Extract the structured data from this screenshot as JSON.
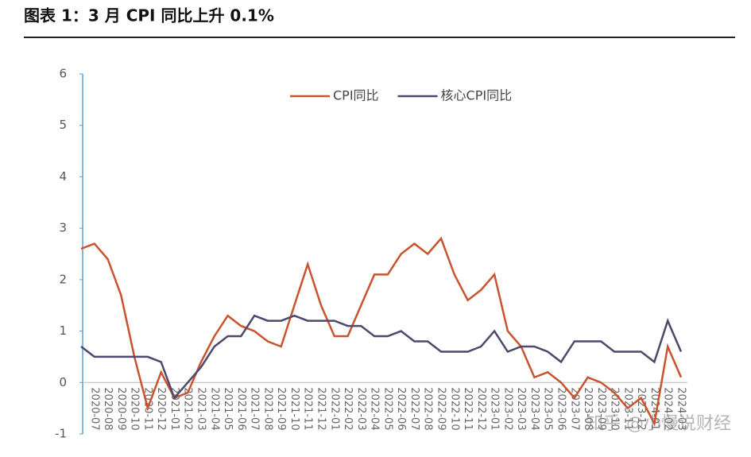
{
  "chart_data": {
    "type": "line",
    "title": "图表 1：3 月 CPI 同比上升 0.1%",
    "annotation": "知乎 @小慢说财经",
    "categories": [
      null,
      "2020-07",
      "2020-08",
      "2020-09",
      "2020-10",
      "2020-11",
      "2020-12",
      "2021-01",
      "2021-02",
      "2021-03",
      "2021-04",
      "2021-05",
      "2021-06",
      "2021-07",
      "2021-08",
      "2021-09",
      "2021-10",
      "2021-11",
      "2021-12",
      "2022-01",
      "2022-02",
      "2022-03",
      "2022-04",
      "2022-05",
      "2022-06",
      "2022-07",
      "2022-08",
      "2022-09",
      "2022-10",
      "2022-11",
      "2022-12",
      "2023-01",
      "2023-02",
      "2023-03",
      "2023-04",
      "2023-05",
      "2023-06",
      "2023-07",
      "2023-08",
      "2023-09",
      "2023-10",
      "2023-11",
      "2023-12",
      "2024-01",
      "2024-02",
      "2024-03"
    ],
    "series": [
      {
        "name": "CPI同比",
        "color": "#c9532f",
        "values": [
          2.6,
          2.7,
          2.4,
          1.7,
          0.5,
          -0.5,
          0.2,
          -0.3,
          -0.2,
          0.4,
          0.9,
          1.3,
          1.1,
          1.0,
          0.8,
          0.7,
          1.5,
          2.3,
          1.5,
          0.9,
          0.9,
          1.5,
          2.1,
          2.1,
          2.5,
          2.7,
          2.5,
          2.8,
          2.1,
          1.6,
          1.8,
          2.1,
          1.0,
          0.7,
          0.1,
          0.2,
          0.0,
          -0.3,
          0.1,
          0.0,
          -0.2,
          -0.5,
          -0.3,
          -0.8,
          0.7,
          0.1
        ]
      },
      {
        "name": "核心CPI同比",
        "color": "#4b4a6a",
        "values": [
          0.7,
          0.5,
          0.5,
          0.5,
          0.5,
          0.5,
          0.4,
          -0.3,
          0.0,
          0.3,
          0.7,
          0.9,
          0.9,
          1.3,
          1.2,
          1.2,
          1.3,
          1.2,
          1.2,
          1.2,
          1.1,
          1.1,
          0.9,
          0.9,
          1.0,
          0.8,
          0.8,
          0.6,
          0.6,
          0.6,
          0.7,
          1.0,
          0.6,
          0.7,
          0.7,
          0.6,
          0.4,
          0.8,
          0.8,
          0.8,
          0.6,
          0.6,
          0.6,
          0.4,
          1.2,
          0.6
        ]
      }
    ],
    "ylim": [
      -1,
      6
    ],
    "yticks": [
      -1,
      0,
      1,
      2,
      3,
      4,
      5,
      6
    ],
    "legend": "top"
  }
}
